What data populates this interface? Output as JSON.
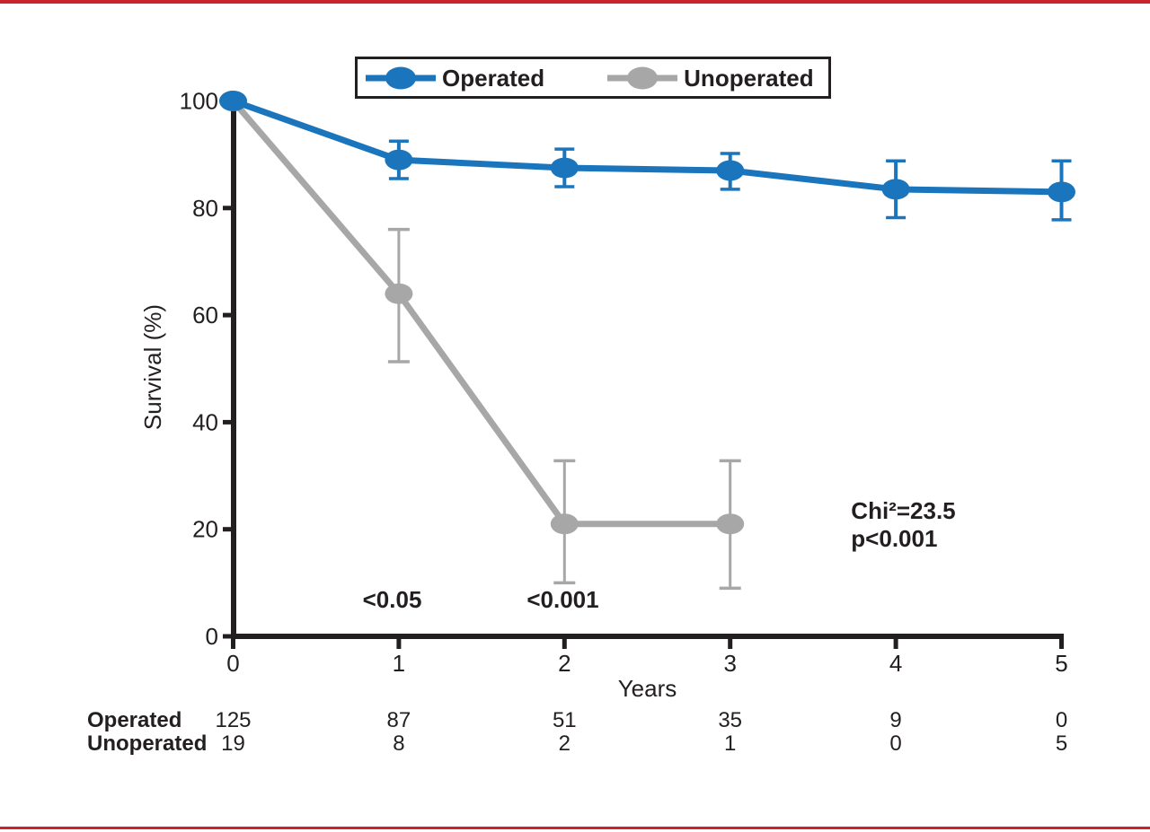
{
  "colors": {
    "accent_red": "#C9232B",
    "operated_blue": "#1B75BC",
    "unoperated_gray": "#A7A7A7",
    "axis_black": "#231F20",
    "background": "#FFFFFF"
  },
  "chart_data": {
    "type": "line",
    "title": "",
    "xlabel": "Years",
    "ylabel": "Survival (%)",
    "xlim": [
      0,
      5
    ],
    "ylim": [
      0,
      100
    ],
    "x_ticks": [
      0,
      1,
      2,
      3,
      4,
      5
    ],
    "y_ticks": [
      100,
      80,
      60,
      40,
      20,
      0
    ],
    "grid": false,
    "legend_position": "top-center",
    "error_bars": true,
    "series": [
      {
        "name": "Operated",
        "color": "#1B75BC",
        "points": [
          {
            "x": 0,
            "y": 100
          },
          {
            "x": 1,
            "y": 89,
            "err_up": 3.5,
            "err_down": 3.5
          },
          {
            "x": 2,
            "y": 87.5,
            "err_up": 3.5,
            "err_down": 3.5
          },
          {
            "x": 3,
            "y": 87,
            "err_up": 3.2,
            "err_down": 3.5
          },
          {
            "x": 4,
            "y": 83.5,
            "err_up": 5.3,
            "err_down": 5.3
          },
          {
            "x": 5,
            "y": 83,
            "err_up": 5.8,
            "err_down": 5.2
          }
        ]
      },
      {
        "name": "Unoperated",
        "color": "#A7A7A7",
        "points": [
          {
            "x": 0,
            "y": 100
          },
          {
            "x": 1,
            "y": 64,
            "err_up": 12,
            "err_down": 12.7
          },
          {
            "x": 2,
            "y": 21,
            "err_up": 11.8,
            "err_down": 11
          },
          {
            "x": 3,
            "y": 21,
            "err_up": 11.8,
            "err_down": 12
          }
        ]
      }
    ],
    "annotations": [
      {
        "text": "<0.05",
        "x": 0.96,
        "y": 6.9,
        "anchor": "middle",
        "bold": true
      },
      {
        "text": "<0.001",
        "x": 1.99,
        "y": 6.9,
        "anchor": "middle",
        "bold": true
      },
      {
        "text": "Chi²=23.5",
        "x": 3.73,
        "y": 23.5,
        "anchor": "start",
        "bold": true
      },
      {
        "text": "p<0.001",
        "x": 3.73,
        "y": 18.3,
        "anchor": "start",
        "bold": true
      }
    ],
    "risk_table": {
      "rows": [
        {
          "label": "Operated",
          "counts": [
            125,
            87,
            51,
            35,
            9,
            0
          ]
        },
        {
          "label": "Unoperated",
          "counts": [
            19,
            8,
            2,
            1,
            0,
            5
          ]
        }
      ]
    }
  }
}
